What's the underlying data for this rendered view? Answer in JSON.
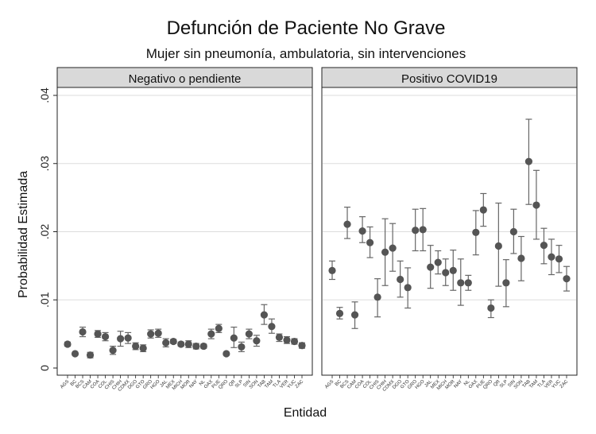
{
  "chart_data": {
    "type": "scatter",
    "title": "Defunción de Paciente No Grave",
    "subtitle": "Mujer sin pneumonía, ambulatoria, sin intervenciones",
    "xlabel": "Entidad",
    "ylabel": "Probabilidad Estimada",
    "ylim": [
      0,
      0.04
    ],
    "yticks": [
      0,
      0.01,
      0.02,
      0.03,
      0.04
    ],
    "ytick_labels": [
      "0",
      ".01",
      ".02",
      ".03",
      ".04"
    ],
    "grid": true,
    "categories": [
      "AGS",
      "BC",
      "BCS",
      "CAM",
      "COA",
      "COL",
      "CHIS",
      "CHIH",
      "CDMX",
      "DGO",
      "GTO",
      "GRO",
      "HGO",
      "JAL",
      "MEX",
      "MICH",
      "MOR",
      "NAY",
      "NL",
      "OAX",
      "PUE",
      "QRO",
      "QR",
      "SLP",
      "SIN",
      "SON",
      "TAB",
      "TAM",
      "TLA",
      "VER",
      "YUC",
      "ZAC"
    ],
    "panels": [
      {
        "label": "Negativo o pendiente",
        "estimate": [
          0.0035,
          0.0021,
          0.0053,
          0.0019,
          0.005,
          0.0046,
          0.0026,
          0.0043,
          0.0044,
          0.0032,
          0.0029,
          0.005,
          0.0051,
          0.0037,
          0.0039,
          0.0035,
          0.0035,
          0.0032,
          0.0032,
          0.005,
          0.0058,
          0.0021,
          0.0044,
          0.0031,
          0.005,
          0.004,
          0.0078,
          0.0061,
          0.0045,
          0.0041,
          0.0039,
          0.0033
        ],
        "lower": [
          0.0032,
          0.0019,
          0.0046,
          0.0015,
          0.0045,
          0.004,
          0.002,
          0.0032,
          0.0036,
          0.0027,
          0.0024,
          0.0044,
          0.0045,
          0.0031,
          0.0036,
          0.0032,
          0.003,
          0.0028,
          0.0029,
          0.0043,
          0.0052,
          0.0019,
          0.003,
          0.0024,
          0.0043,
          0.0032,
          0.0064,
          0.0051,
          0.0039,
          0.0036,
          0.0035,
          0.0029
        ],
        "upper": [
          0.0038,
          0.0023,
          0.006,
          0.0023,
          0.0055,
          0.0052,
          0.0032,
          0.0054,
          0.0052,
          0.0037,
          0.0034,
          0.0056,
          0.0057,
          0.0043,
          0.0042,
          0.0038,
          0.004,
          0.0036,
          0.0035,
          0.0057,
          0.0064,
          0.0023,
          0.006,
          0.0038,
          0.0057,
          0.0048,
          0.0093,
          0.0072,
          0.005,
          0.0046,
          0.0043,
          0.0037
        ]
      },
      {
        "label": "Positivo COVID19",
        "estimate": [
          0.0143,
          0.008,
          0.0211,
          0.0078,
          0.0201,
          0.0184,
          0.0104,
          0.017,
          0.0176,
          0.013,
          0.0118,
          0.0202,
          0.0203,
          0.0148,
          0.0155,
          0.014,
          0.0143,
          0.0125,
          0.0125,
          0.0199,
          0.0232,
          0.0088,
          0.0179,
          0.0125,
          0.02,
          0.0161,
          0.0303,
          0.0239,
          0.018,
          0.0163,
          0.016,
          0.0131
        ],
        "lower": [
          0.013,
          0.0072,
          0.019,
          0.0058,
          0.0184,
          0.0162,
          0.0075,
          0.0121,
          0.0142,
          0.0104,
          0.0088,
          0.0172,
          0.0172,
          0.0117,
          0.0138,
          0.0121,
          0.0114,
          0.0092,
          0.0114,
          0.0166,
          0.0208,
          0.0074,
          0.012,
          0.009,
          0.0168,
          0.0128,
          0.024,
          0.0189,
          0.0153,
          0.0137,
          0.014,
          0.0113
        ],
        "upper": [
          0.0157,
          0.0089,
          0.0236,
          0.0097,
          0.0222,
          0.0207,
          0.0131,
          0.0219,
          0.0212,
          0.0157,
          0.0147,
          0.0233,
          0.0234,
          0.018,
          0.0172,
          0.016,
          0.0173,
          0.016,
          0.0136,
          0.0231,
          0.0256,
          0.01,
          0.0242,
          0.0159,
          0.0233,
          0.0193,
          0.0365,
          0.029,
          0.0205,
          0.0189,
          0.018,
          0.0149
        ]
      }
    ]
  },
  "colors": {
    "marker": "#555555",
    "errorbar": "#666666",
    "strip_fill": "#d9d9d9",
    "grid": "#dddddd",
    "frame": "#222222"
  }
}
